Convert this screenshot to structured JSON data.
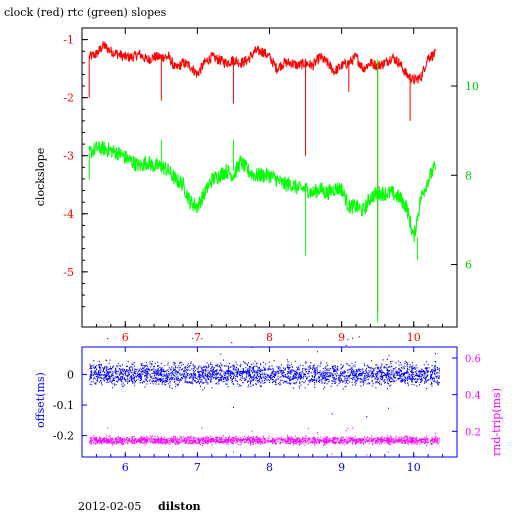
{
  "title": "clock (red) rtc (green) slopes",
  "footer": {
    "date": "2012-02-05",
    "host": "dilston"
  },
  "colors": {
    "clock": "#ff0000",
    "rtc": "#00ff00",
    "offset": "#0000ff",
    "roundtrip": "#ff00ff",
    "axis_bottom": "#0000ff"
  },
  "chart_data": [
    {
      "type": "line",
      "ylabel": "clockslope",
      "y2label": "",
      "xlim": [
        5.4,
        10.6
      ],
      "ylim": [
        -5.95,
        -0.8
      ],
      "y2lim": [
        4.6,
        11.3
      ],
      "xticks": [
        "6",
        "7",
        "8",
        "9",
        "10"
      ],
      "yticks": [
        "-1",
        "-2",
        "-3",
        "-4",
        "-5"
      ],
      "y2ticks": [
        "10",
        "8",
        "6"
      ],
      "series": [
        {
          "axis": "left",
          "color": "#ff0000",
          "x": [
            5.5,
            5.6,
            5.7,
            5.8,
            5.9,
            6.0,
            6.1,
            6.2,
            6.3,
            6.4,
            6.5,
            6.6,
            6.7,
            6.8,
            6.9,
            7.0,
            7.1,
            7.2,
            7.3,
            7.4,
            7.5,
            7.6,
            7.7,
            7.8,
            7.9,
            8.0,
            8.1,
            8.2,
            8.3,
            8.4,
            8.5,
            8.6,
            8.7,
            8.8,
            8.9,
            9.0,
            9.1,
            9.2,
            9.3,
            9.4,
            9.5,
            9.6,
            9.7,
            9.8,
            9.9,
            10.0,
            10.1,
            10.2,
            10.3
          ],
          "y": [
            -1.3,
            -1.25,
            -1.1,
            -1.2,
            -1.25,
            -1.3,
            -1.3,
            -1.25,
            -1.35,
            -1.3,
            -1.3,
            -1.3,
            -1.5,
            -1.4,
            -1.45,
            -1.6,
            -1.4,
            -1.3,
            -1.35,
            -1.4,
            -1.35,
            -1.4,
            -1.35,
            -1.2,
            -1.2,
            -1.3,
            -1.5,
            -1.4,
            -1.4,
            -1.45,
            -1.4,
            -1.45,
            -1.3,
            -1.4,
            -1.55,
            -1.45,
            -1.4,
            -1.3,
            -1.5,
            -1.4,
            -1.45,
            -1.4,
            -1.3,
            -1.4,
            -1.6,
            -1.7,
            -1.65,
            -1.3,
            -1.25
          ]
        },
        {
          "axis": "right",
          "color": "#00ff00",
          "x": [
            5.5,
            5.6,
            5.7,
            5.8,
            5.9,
            6.0,
            6.1,
            6.2,
            6.3,
            6.4,
            6.5,
            6.6,
            6.7,
            6.8,
            6.9,
            7.0,
            7.1,
            7.2,
            7.3,
            7.4,
            7.5,
            7.6,
            7.7,
            7.8,
            7.9,
            8.0,
            8.1,
            8.2,
            8.3,
            8.4,
            8.5,
            8.6,
            8.7,
            8.8,
            8.9,
            9.0,
            9.1,
            9.2,
            9.3,
            9.4,
            9.5,
            9.6,
            9.7,
            9.8,
            9.9,
            10.0,
            10.1,
            10.2,
            10.3
          ],
          "y": [
            8.5,
            8.6,
            8.6,
            8.55,
            8.5,
            8.4,
            8.3,
            8.2,
            8.3,
            8.2,
            8.2,
            8.1,
            7.9,
            7.8,
            7.4,
            7.3,
            7.6,
            7.9,
            8.0,
            8.1,
            8.0,
            8.3,
            8.1,
            8.0,
            8.0,
            8.0,
            7.9,
            7.8,
            7.8,
            7.7,
            7.7,
            7.6,
            7.7,
            7.6,
            7.7,
            7.7,
            7.3,
            7.3,
            7.2,
            7.5,
            7.6,
            7.6,
            7.6,
            7.5,
            7.3,
            6.6,
            7.5,
            7.9,
            8.2
          ]
        }
      ]
    },
    {
      "type": "scatter",
      "xlabel": "",
      "ylabel": "offset(ms)",
      "y2label": "rnd-trip(ms)",
      "xlim": [
        5.4,
        10.6
      ],
      "ylim": [
        -0.27,
        0.09
      ],
      "y2lim": [
        0.06,
        0.66
      ],
      "xticks": [
        "6",
        "7",
        "8",
        "9",
        "10"
      ],
      "yticks": [
        "0",
        "-0.1",
        "-0.2"
      ],
      "y2ticks": [
        "0.6",
        "0.4",
        "0.2"
      ],
      "series": [
        {
          "axis": "left",
          "color": "#0000ff",
          "x_range": [
            5.5,
            10.35
          ],
          "center": 0.0,
          "spread": 0.035
        },
        {
          "axis": "right",
          "color": "#ff00ff",
          "x_range": [
            5.5,
            10.35
          ],
          "center": 0.15,
          "spread": 0.02
        }
      ]
    }
  ]
}
